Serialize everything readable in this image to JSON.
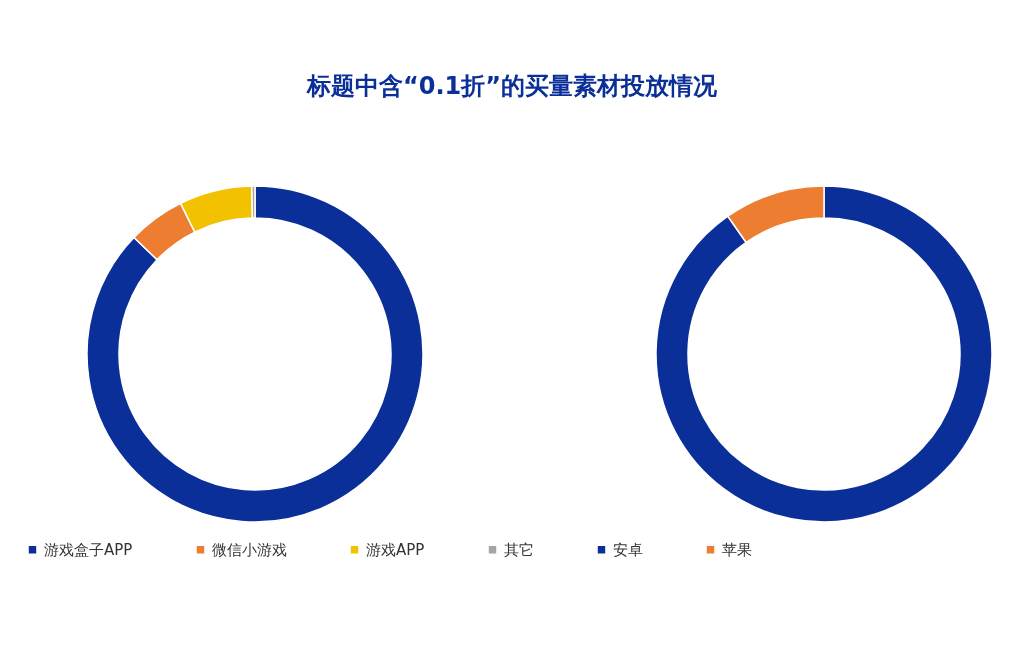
{
  "chart_data": [
    {
      "type": "donut",
      "title": "标题中含“0.1折”的买量素材投放情况",
      "categories": [
        "游戏盒子APP",
        "微信小游戏",
        "游戏APP",
        "其它"
      ],
      "values": [
        87.2,
        5.5,
        7.0,
        0.3
      ],
      "colors": [
        "#0b2f98",
        "#ed7d31",
        "#f2c200",
        "#a5a5a5"
      ],
      "legend": "bottom"
    },
    {
      "type": "donut",
      "categories": [
        "安卓",
        "苹果"
      ],
      "values": [
        90.3,
        9.7
      ],
      "colors": [
        "#0b2f98",
        "#ed7d31"
      ],
      "legend": "bottom"
    }
  ]
}
